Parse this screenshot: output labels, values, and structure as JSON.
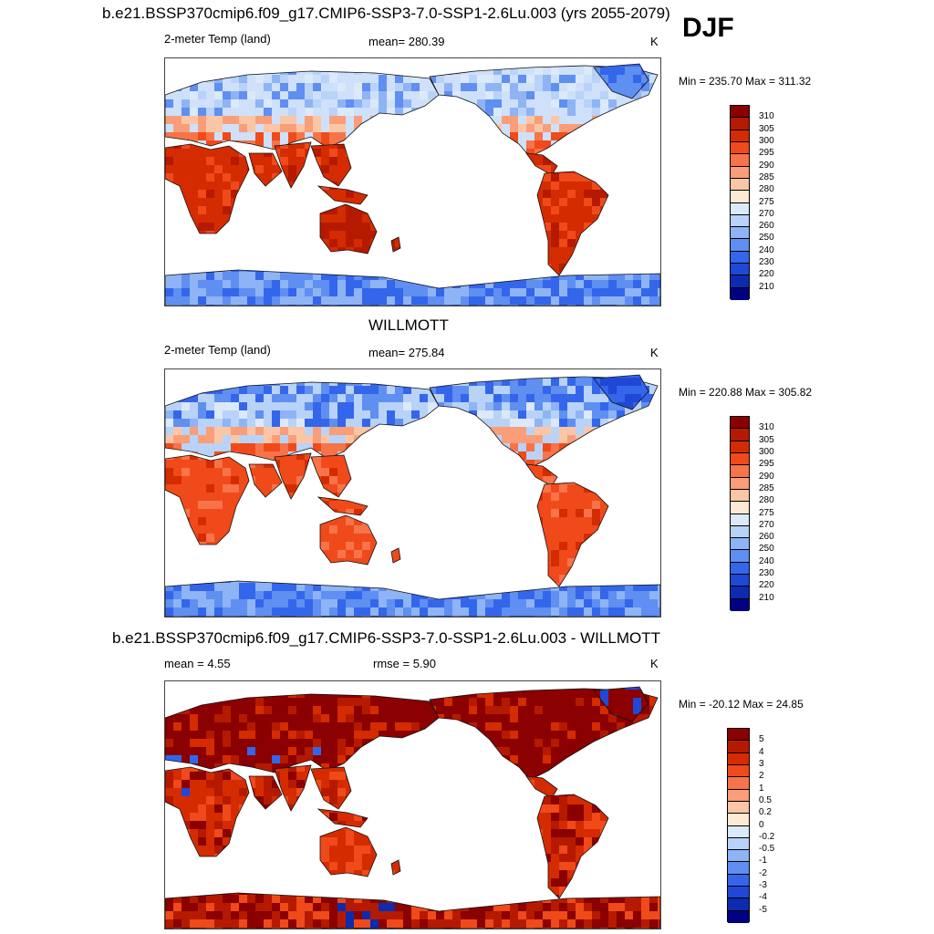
{
  "header": {
    "run_title": "b.e21.BSSP370cmip6.f09_g17.CMIP6-SSP3-7.0-SSP1-2.6Lu.003 (yrs 2055-2079)",
    "season": "DJF"
  },
  "panels": [
    {
      "title": "",
      "left_label": "2-meter Temp (land)",
      "center_label": "mean= 280.39",
      "units": "K",
      "minmax": "Min = 235.70 Max = 311.32",
      "colorbar_labels": [
        "310",
        "305",
        "300",
        "295",
        "290",
        "285",
        "280",
        "275",
        "270",
        "260",
        "250",
        "240",
        "230",
        "220",
        "210"
      ],
      "colorbar_colors": [
        "#8b0000",
        "#b51a00",
        "#d42c00",
        "#f04a1a",
        "#f7734a",
        "#f99e78",
        "#fbc6a6",
        "#fde9d4",
        "#dbe9fb",
        "#b9d2f8",
        "#8eb4f5",
        "#5f8ff0",
        "#3466ec",
        "#1f48d6",
        "#0c2bb0",
        "#000080"
      ],
      "variant": "model"
    },
    {
      "title": "WILLMOTT",
      "left_label": "2-meter Temp (land)",
      "center_label": "mean= 275.84",
      "units": "K",
      "minmax": "Min = 220.88 Max = 305.82",
      "colorbar_labels": [
        "310",
        "305",
        "300",
        "295",
        "290",
        "285",
        "280",
        "275",
        "270",
        "260",
        "250",
        "240",
        "230",
        "220",
        "210"
      ],
      "colorbar_colors": [
        "#8b0000",
        "#b51a00",
        "#d42c00",
        "#f04a1a",
        "#f7734a",
        "#f99e78",
        "#fbc6a6",
        "#fde9d4",
        "#dbe9fb",
        "#b9d2f8",
        "#8eb4f5",
        "#5f8ff0",
        "#3466ec",
        "#1f48d6",
        "#0c2bb0",
        "#000080"
      ],
      "variant": "obs"
    },
    {
      "title": "b.e21.BSSP370cmip6.f09_g17.CMIP6-SSP3-7.0-SSP1-2.6Lu.003 - WILLMOTT",
      "left_label": "mean =   4.55",
      "center_label": "rmse =   5.90",
      "units": "K",
      "minmax": "Min = -20.12 Max =  24.85",
      "colorbar_labels": [
        "5",
        "4",
        "3",
        "2",
        "1",
        "0.5",
        "0.2",
        "0",
        "-0.2",
        "-0.5",
        "-1",
        "-2",
        "-3",
        "-4",
        "-5"
      ],
      "colorbar_colors": [
        "#8b0000",
        "#b51a00",
        "#d42c00",
        "#f04a1a",
        "#f7734a",
        "#f99e78",
        "#fbc6a6",
        "#fde9d4",
        "#dbe9fb",
        "#b9d2f8",
        "#8eb4f5",
        "#5f8ff0",
        "#3466ec",
        "#1f48d6",
        "#0c2bb0",
        "#000080"
      ],
      "variant": "diff"
    }
  ],
  "chart_data": [
    {
      "type": "heatmap",
      "title": "b.e21.BSSP370cmip6.f09_g17.CMIP6-SSP3-7.0-SSP1-2.6Lu.003 (yrs 2055-2079)",
      "variable": "2-meter Temp (land)",
      "season": "DJF",
      "units": "K",
      "mean": 280.39,
      "min": 235.7,
      "max": 311.32,
      "levels": [
        210,
        220,
        230,
        240,
        250,
        260,
        270,
        275,
        280,
        285,
        290,
        295,
        300,
        305,
        310
      ]
    },
    {
      "type": "heatmap",
      "title": "WILLMOTT",
      "variable": "2-meter Temp (land)",
      "season": "DJF",
      "units": "K",
      "mean": 275.84,
      "min": 220.88,
      "max": 305.82,
      "levels": [
        210,
        220,
        230,
        240,
        250,
        260,
        270,
        275,
        280,
        285,
        290,
        295,
        300,
        305,
        310
      ]
    },
    {
      "type": "heatmap",
      "title": "b.e21.BSSP370cmip6.f09_g17.CMIP6-SSP3-7.0-SSP1-2.6Lu.003 - WILLMOTT",
      "season": "DJF",
      "units": "K",
      "mean": 4.55,
      "rmse": 5.9,
      "min": -20.12,
      "max": 24.85,
      "levels": [
        -5,
        -4,
        -3,
        -2,
        -1,
        -0.5,
        -0.2,
        0,
        0.2,
        0.5,
        1,
        2,
        3,
        4,
        5
      ]
    }
  ]
}
